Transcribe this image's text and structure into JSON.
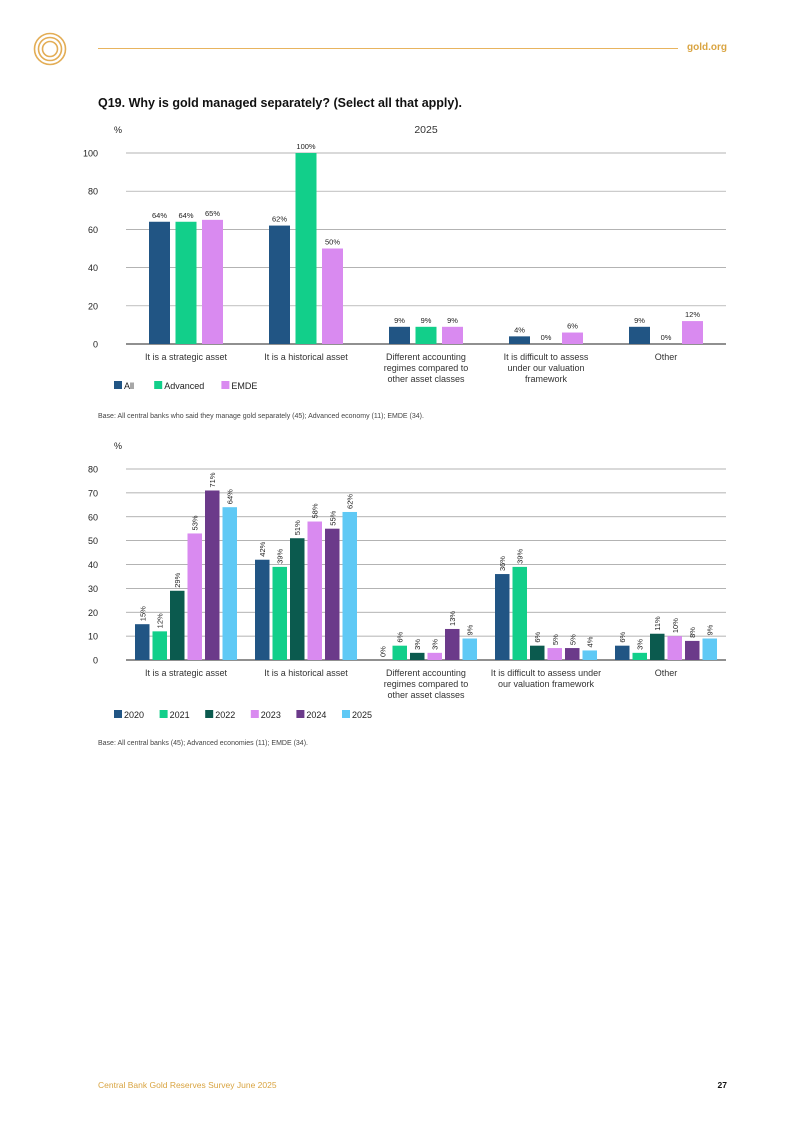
{
  "header": {
    "site": "gold.org"
  },
  "question": "Q19. Why is gold managed separately? (Select all that apply).",
  "chart1_base": "Base: All central banks who said they manage gold separately (45); Advanced economy (11); EMDE (34).",
  "chart2_base": "Base: All central banks (45); Advanced economies (11); EMDE (34).",
  "footer": {
    "title": "Central Bank Gold Reserves Survey June 2025",
    "page": "27"
  },
  "colors": {
    "gold": "#d9a441",
    "navy": "#215584",
    "green": "#12cf8a",
    "darkgreen": "#0b5a4e",
    "lilac": "#d98af0",
    "purple": "#6b3a8a",
    "skyblue": "#5fc9f5"
  },
  "chart_data": [
    {
      "type": "bar",
      "title": "2025",
      "ylabel": "%",
      "ylim": [
        0,
        100
      ],
      "yticks": [
        0,
        20,
        40,
        60,
        80,
        100
      ],
      "grid": true,
      "legend": "bottom-left",
      "categories": [
        [
          "It is a strategic asset"
        ],
        [
          "It is a historical asset"
        ],
        [
          "Different accounting",
          "regimes compared to",
          "other asset classes"
        ],
        [
          "It is difficult to assess",
          "under our valuation",
          "framework"
        ],
        [
          "Other"
        ]
      ],
      "series": [
        {
          "name": "All",
          "color": "#215584",
          "values": [
            64,
            62,
            9,
            4,
            9
          ]
        },
        {
          "name": "Advanced",
          "color": "#12cf8a",
          "values": [
            64,
            100,
            9,
            0,
            0
          ]
        },
        {
          "name": "EMDE",
          "color": "#d98af0",
          "values": [
            65,
            50,
            9,
            6,
            12
          ]
        }
      ]
    },
    {
      "type": "bar",
      "title": "",
      "ylabel": "%",
      "ylim": [
        0,
        80
      ],
      "yticks": [
        0,
        10,
        20,
        30,
        40,
        50,
        60,
        70,
        80
      ],
      "grid": true,
      "legend": "bottom-left",
      "categories": [
        [
          "It is a strategic asset"
        ],
        [
          "It is a historical asset"
        ],
        [
          "Different accounting",
          "regimes compared to",
          "other asset classes"
        ],
        [
          "It is difficult to assess under",
          "our valuation framework"
        ],
        [
          "Other"
        ]
      ],
      "series": [
        {
          "name": "2020",
          "color": "#215584",
          "values": [
            15,
            42,
            0,
            36,
            6
          ]
        },
        {
          "name": "2021",
          "color": "#12cf8a",
          "values": [
            12,
            39,
            6,
            39,
            3
          ]
        },
        {
          "name": "2022",
          "color": "#0b5a4e",
          "values": [
            29,
            51,
            3,
            6,
            11
          ]
        },
        {
          "name": "2023",
          "color": "#d98af0",
          "values": [
            53,
            58,
            3,
            5,
            10
          ]
        },
        {
          "name": "2024",
          "color": "#6b3a8a",
          "values": [
            71,
            55,
            13,
            5,
            8
          ]
        },
        {
          "name": "2025",
          "color": "#5fc9f5",
          "values": [
            64,
            62,
            9,
            4,
            9
          ]
        }
      ]
    }
  ]
}
